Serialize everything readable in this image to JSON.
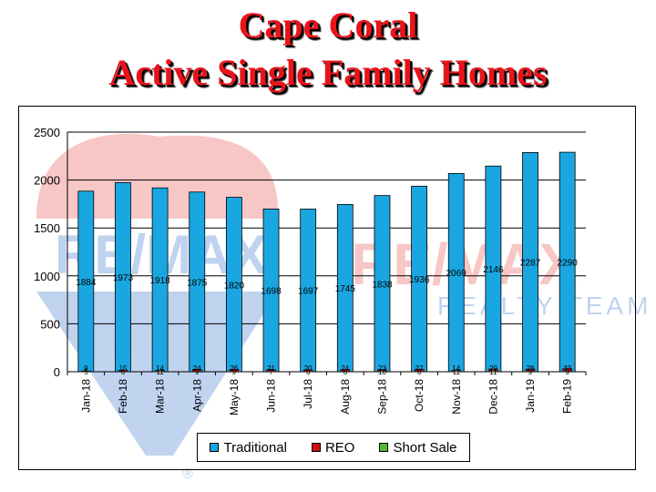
{
  "title": {
    "line1": "Cape Coral",
    "line2": "Active Single Family Homes"
  },
  "watermark": {
    "brand_text": "RE/MAX",
    "sub_text": "REALTY TEAM",
    "registered": "®"
  },
  "colors": {
    "traditional": "#1aa6e0",
    "reo": "#cc1111",
    "short_sale": "#55bb33",
    "title": "#e8141a"
  },
  "chart_data": {
    "type": "bar",
    "categories": [
      "Jan-18",
      "Feb-18",
      "Mar-18",
      "Apr-18",
      "May-18",
      "Jun-18",
      "Jul-18",
      "Aug-18",
      "Sep-18",
      "Oct-18",
      "Nov-18",
      "Dec-18",
      "Jan-19",
      "Feb-19"
    ],
    "series": [
      {
        "name": "Traditional",
        "values": [
          1884,
          1973,
          1918,
          1875,
          1820,
          1698,
          1697,
          1745,
          1838,
          1936,
          2069,
          2146,
          2287,
          2290
        ],
        "color": "#1aa6e0"
      },
      {
        "name": "REO",
        "values": [
          9,
          15,
          14,
          24,
          26,
          21,
          20,
          24,
          23,
          27,
          14,
          29,
          28,
          33
        ],
        "color": "#cc1111"
      },
      {
        "name": "Short Sale",
        "values": [
          5,
          6,
          11,
          9,
          9,
          7,
          6,
          6,
          10,
          6,
          11,
          11,
          9,
          9
        ],
        "color": "#55bb33"
      }
    ],
    "data_labels": [
      "1884",
      "1973",
      "1918",
      "1875",
      "1820",
      "1698",
      "1697",
      "1745",
      "1838",
      "1936",
      "2069",
      "2146",
      "2287",
      "2290"
    ],
    "ylim": [
      0,
      2500
    ],
    "yticks": [
      0,
      500,
      1000,
      1500,
      2000,
      2500
    ],
    "grid": true,
    "legend_position": "bottom-center",
    "xlabel": "",
    "ylabel": ""
  }
}
